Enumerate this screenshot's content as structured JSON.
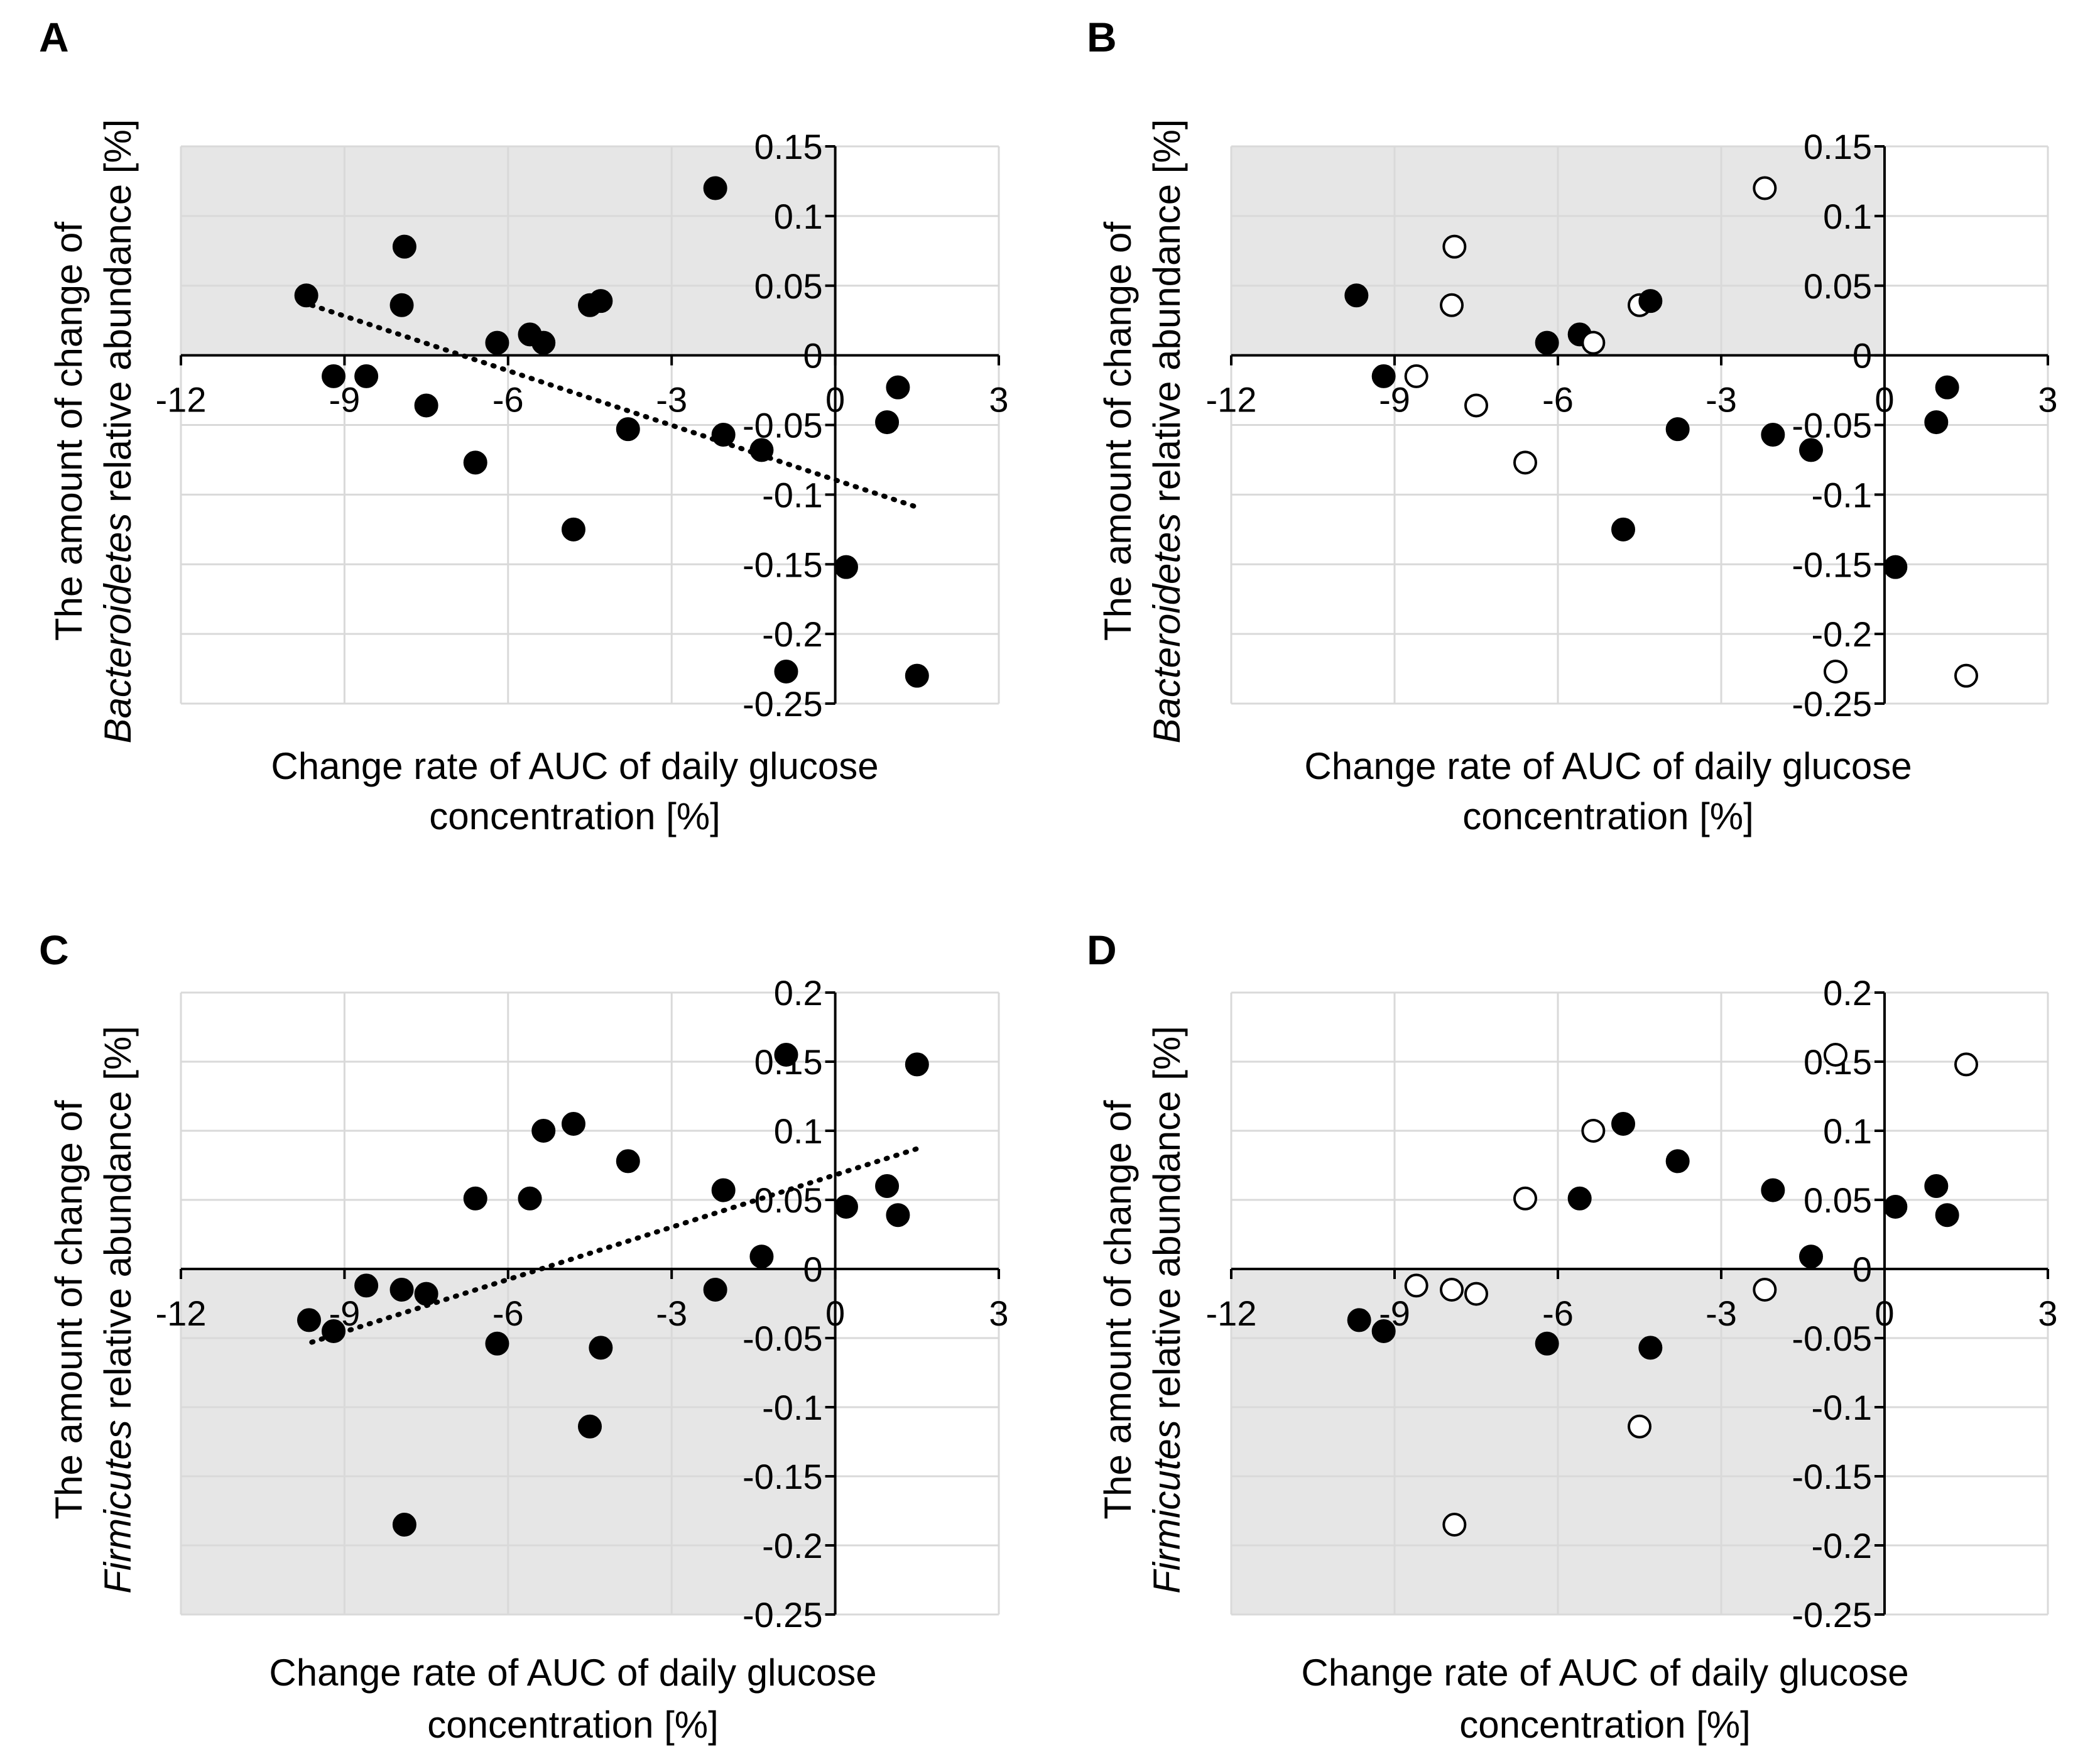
{
  "chart_data": [
    {
      "panel": "A",
      "type": "scatter",
      "xlabel": [
        "Change rate of AUC of daily glucose",
        "concentration [%]"
      ],
      "ylabel": [
        "The amount of change of",
        "Bacteroidetes",
        "relative abundance [%]"
      ],
      "xlim": [
        -12,
        3
      ],
      "ylim": [
        -0.25,
        0.15
      ],
      "x_ticks": [
        "-12",
        "-9",
        "-6",
        "-3",
        "0",
        "3"
      ],
      "y_ticks": [
        "0.15",
        "0.1",
        "0.05",
        "0",
        "-0.05",
        "-0.1",
        "-0.15",
        "-0.2",
        "-0.25"
      ],
      "shaded_quadrant": "upper-left",
      "trendline": {
        "x": [
          -9.6,
          1.5
        ],
        "y": [
          0.036,
          -0.109
        ]
      },
      "points": [
        {
          "x": -9.7,
          "y": 0.043,
          "filled": true
        },
        {
          "x": -9.2,
          "y": -0.015,
          "filled": true
        },
        {
          "x": -8.6,
          "y": -0.015,
          "filled": true
        },
        {
          "x": -7.9,
          "y": 0.078,
          "filled": true
        },
        {
          "x": -7.95,
          "y": 0.036,
          "filled": true
        },
        {
          "x": -7.5,
          "y": -0.036,
          "filled": true
        },
        {
          "x": -6.6,
          "y": -0.077,
          "filled": true
        },
        {
          "x": -6.2,
          "y": 0.009,
          "filled": true
        },
        {
          "x": -5.6,
          "y": 0.015,
          "filled": true
        },
        {
          "x": -5.35,
          "y": 0.009,
          "filled": true
        },
        {
          "x": -4.8,
          "y": -0.125,
          "filled": true
        },
        {
          "x": -4.5,
          "y": 0.036,
          "filled": true
        },
        {
          "x": -4.3,
          "y": 0.039,
          "filled": true
        },
        {
          "x": -3.8,
          "y": -0.053,
          "filled": true
        },
        {
          "x": -2.2,
          "y": 0.12,
          "filled": true
        },
        {
          "x": -2.05,
          "y": -0.057,
          "filled": true
        },
        {
          "x": -1.35,
          "y": -0.068,
          "filled": true
        },
        {
          "x": -0.9,
          "y": -0.227,
          "filled": true
        },
        {
          "x": 0.2,
          "y": -0.152,
          "filled": true
        },
        {
          "x": 0.95,
          "y": -0.048,
          "filled": true
        },
        {
          "x": 1.15,
          "y": -0.023,
          "filled": true
        },
        {
          "x": 1.5,
          "y": -0.23,
          "filled": true
        }
      ]
    },
    {
      "panel": "B",
      "type": "scatter",
      "xlabel": [
        "Change rate of AUC of daily glucose",
        "concentration [%]"
      ],
      "ylabel": [
        "The amount of change of",
        "Bacteroidetes",
        "relative abundance [%]"
      ],
      "xlim": [
        -12,
        3
      ],
      "ylim": [
        -0.25,
        0.15
      ],
      "x_ticks": [
        "-12",
        "-9",
        "-6",
        "-3",
        "0",
        "3"
      ],
      "y_ticks": [
        "0.15",
        "0.1",
        "0.05",
        "0",
        "-0.05",
        "-0.1",
        "-0.15",
        "-0.2",
        "-0.25"
      ],
      "shaded_quadrant": "upper-left",
      "points": [
        {
          "x": -9.7,
          "y": 0.043,
          "filled": true
        },
        {
          "x": -9.2,
          "y": -0.015,
          "filled": true
        },
        {
          "x": -8.6,
          "y": -0.015,
          "filled": false
        },
        {
          "x": -7.9,
          "y": 0.078,
          "filled": false
        },
        {
          "x": -7.95,
          "y": 0.036,
          "filled": false
        },
        {
          "x": -7.5,
          "y": -0.036,
          "filled": false
        },
        {
          "x": -6.6,
          "y": -0.077,
          "filled": false
        },
        {
          "x": -6.2,
          "y": 0.009,
          "filled": true
        },
        {
          "x": -5.6,
          "y": 0.015,
          "filled": true
        },
        {
          "x": -5.35,
          "y": 0.009,
          "filled": false
        },
        {
          "x": -4.8,
          "y": -0.125,
          "filled": true
        },
        {
          "x": -4.5,
          "y": 0.036,
          "filled": false
        },
        {
          "x": -4.3,
          "y": 0.039,
          "filled": true
        },
        {
          "x": -3.8,
          "y": -0.053,
          "filled": true
        },
        {
          "x": -2.2,
          "y": 0.12,
          "filled": false
        },
        {
          "x": -2.05,
          "y": -0.057,
          "filled": true
        },
        {
          "x": -1.35,
          "y": -0.068,
          "filled": true
        },
        {
          "x": -0.9,
          "y": -0.227,
          "filled": false
        },
        {
          "x": 0.2,
          "y": -0.152,
          "filled": true
        },
        {
          "x": 0.95,
          "y": -0.048,
          "filled": true
        },
        {
          "x": 1.15,
          "y": -0.023,
          "filled": true
        },
        {
          "x": 1.5,
          "y": -0.23,
          "filled": false
        }
      ]
    },
    {
      "panel": "C",
      "type": "scatter",
      "xlabel": [
        "Change rate of AUC of daily glucose",
        "concentration [%]"
      ],
      "ylabel": [
        "The amount of change of",
        "Firmicutes",
        "relative abundance [%]"
      ],
      "xlim": [
        -12,
        3
      ],
      "ylim": [
        -0.25,
        0.2
      ],
      "x_ticks": [
        "-12",
        "-9",
        "-6",
        "-3",
        "0",
        "3"
      ],
      "y_ticks": [
        "0.2",
        "0.15",
        "0.1",
        "0.05",
        "0",
        "-0.05",
        "-0.1",
        "-0.15",
        "-0.2",
        "-0.25"
      ],
      "shaded_quadrant": "lower-left",
      "trendline": {
        "x": [
          -9.6,
          1.5
        ],
        "y": [
          -0.053,
          0.087
        ]
      },
      "points": [
        {
          "x": -9.65,
          "y": -0.037,
          "filled": true
        },
        {
          "x": -9.2,
          "y": -0.045,
          "filled": true
        },
        {
          "x": -8.6,
          "y": -0.012,
          "filled": true
        },
        {
          "x": -7.95,
          "y": -0.015,
          "filled": true
        },
        {
          "x": -7.9,
          "y": -0.185,
          "filled": true
        },
        {
          "x": -7.5,
          "y": -0.018,
          "filled": true
        },
        {
          "x": -6.6,
          "y": 0.051,
          "filled": true
        },
        {
          "x": -6.2,
          "y": -0.054,
          "filled": true
        },
        {
          "x": -5.6,
          "y": 0.051,
          "filled": true
        },
        {
          "x": -5.35,
          "y": 0.1,
          "filled": true
        },
        {
          "x": -4.8,
          "y": 0.105,
          "filled": true
        },
        {
          "x": -4.5,
          "y": -0.114,
          "filled": true
        },
        {
          "x": -4.3,
          "y": -0.057,
          "filled": true
        },
        {
          "x": -3.8,
          "y": 0.078,
          "filled": true
        },
        {
          "x": -2.2,
          "y": -0.015,
          "filled": true
        },
        {
          "x": -2.05,
          "y": 0.057,
          "filled": true
        },
        {
          "x": -1.35,
          "y": 0.009,
          "filled": true
        },
        {
          "x": -0.9,
          "y": 0.155,
          "filled": true
        },
        {
          "x": 0.2,
          "y": 0.045,
          "filled": true
        },
        {
          "x": 0.95,
          "y": 0.06,
          "filled": true
        },
        {
          "x": 1.15,
          "y": 0.039,
          "filled": true
        },
        {
          "x": 1.5,
          "y": 0.148,
          "filled": true
        }
      ]
    },
    {
      "panel": "D",
      "type": "scatter",
      "xlabel": [
        "Change rate of AUC of daily glucose",
        "concentration [%]"
      ],
      "ylabel": [
        "The amount of change of",
        "Firmicutes",
        "relative abundance [%]"
      ],
      "xlim": [
        -12,
        3
      ],
      "ylim": [
        -0.25,
        0.2
      ],
      "x_ticks": [
        "-12",
        "-9",
        "-6",
        "-3",
        "0",
        "3"
      ],
      "y_ticks": [
        "0.2",
        "0.15",
        "0.1",
        "0.05",
        "0",
        "-0.05",
        "-0.1",
        "-0.15",
        "-0.2",
        "-0.25"
      ],
      "shaded_quadrant": "lower-left",
      "points": [
        {
          "x": -9.65,
          "y": -0.037,
          "filled": true
        },
        {
          "x": -9.2,
          "y": -0.045,
          "filled": true
        },
        {
          "x": -8.6,
          "y": -0.012,
          "filled": false
        },
        {
          "x": -7.95,
          "y": -0.015,
          "filled": false
        },
        {
          "x": -7.9,
          "y": -0.185,
          "filled": false
        },
        {
          "x": -7.5,
          "y": -0.018,
          "filled": false
        },
        {
          "x": -6.6,
          "y": 0.051,
          "filled": false
        },
        {
          "x": -6.2,
          "y": -0.054,
          "filled": true
        },
        {
          "x": -5.6,
          "y": 0.051,
          "filled": true
        },
        {
          "x": -5.35,
          "y": 0.1,
          "filled": false
        },
        {
          "x": -4.8,
          "y": 0.105,
          "filled": true
        },
        {
          "x": -4.5,
          "y": -0.114,
          "filled": false
        },
        {
          "x": -4.3,
          "y": -0.057,
          "filled": true
        },
        {
          "x": -3.8,
          "y": 0.078,
          "filled": true
        },
        {
          "x": -2.2,
          "y": -0.015,
          "filled": false
        },
        {
          "x": -2.05,
          "y": 0.057,
          "filled": true
        },
        {
          "x": -1.35,
          "y": 0.009,
          "filled": true
        },
        {
          "x": -0.9,
          "y": 0.155,
          "filled": false
        },
        {
          "x": 0.2,
          "y": 0.045,
          "filled": true
        },
        {
          "x": 0.95,
          "y": 0.06,
          "filled": true
        },
        {
          "x": 1.15,
          "y": 0.039,
          "filled": true
        },
        {
          "x": 1.5,
          "y": 0.148,
          "filled": false
        }
      ]
    }
  ]
}
